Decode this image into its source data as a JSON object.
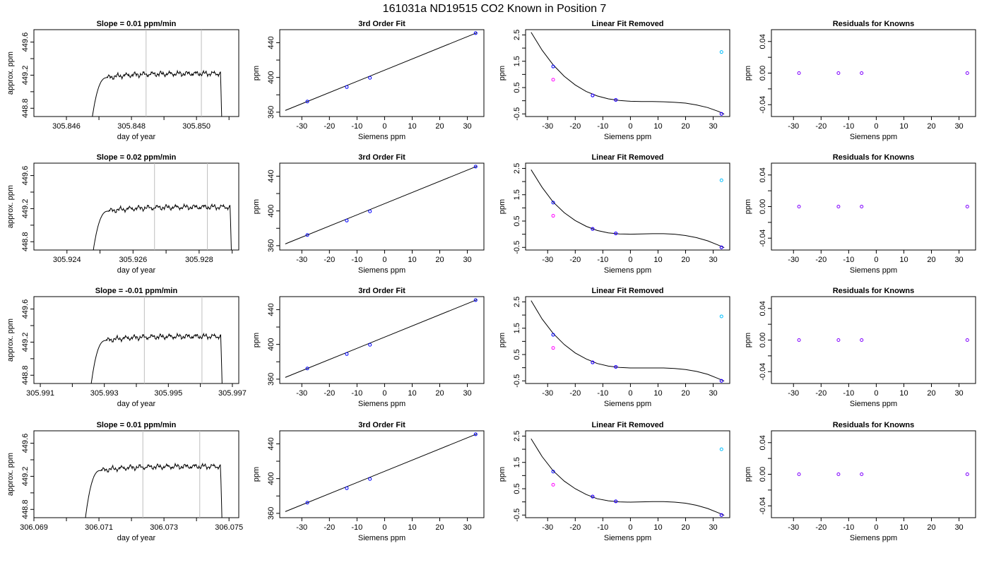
{
  "figure": {
    "suptitle": "161031a     ND19515   CO2 Known in Position  7"
  },
  "colors": {
    "line": "#000000",
    "vline": "#bebebe",
    "point_blue": "#0000ff",
    "point_magenta": "#ff00ff",
    "point_cyan": "#00bfff",
    "point_purple": "#8000ff"
  },
  "chart_data": [
    {
      "type": "line",
      "panel": "time_series",
      "row": 0,
      "title": "Slope =  0.01  ppm/min",
      "xlabel": "day of year",
      "ylabel": "approx. ppm",
      "xlim": [
        305.845,
        305.8513
      ],
      "ylim": [
        448.7,
        449.75
      ],
      "xticks": [
        305.846,
        305.847,
        305.848,
        305.849,
        305.85,
        305.851
      ],
      "xticklabels": [
        "305.846",
        "",
        "305.848",
        "",
        "305.850",
        ""
      ],
      "yticks": [
        448.8,
        449.0,
        449.2,
        449.4,
        449.6
      ],
      "yticklabels": [
        "448.8",
        "",
        "449.2",
        "",
        "449.6"
      ],
      "vlines": [
        305.84845,
        305.85015
      ],
      "trace": {
        "start": 305.8467,
        "end": 305.8508,
        "level": 449.2
      }
    },
    {
      "type": "line",
      "panel": "time_series",
      "row": 1,
      "title": "Slope =  0.02  ppm/min",
      "xlabel": "day of year",
      "ylabel": "approx. ppm",
      "xlim": [
        305.923,
        305.9292
      ],
      "ylim": [
        448.7,
        449.75
      ],
      "xticks": [
        305.924,
        305.925,
        305.926,
        305.927,
        305.928,
        305.929
      ],
      "xticklabels": [
        "305.924",
        "",
        "305.926",
        "",
        "305.928",
        ""
      ],
      "yticks": [
        448.8,
        449.0,
        449.2,
        449.4,
        449.6
      ],
      "yticklabels": [
        "448.8",
        "",
        "449.2",
        "",
        "449.6"
      ],
      "vlines": [
        305.92665,
        305.92825
      ],
      "trace": {
        "start": 305.9247,
        "end": 305.929,
        "level": 449.2
      }
    },
    {
      "type": "line",
      "panel": "time_series",
      "row": 2,
      "title": "Slope =  -0.01  ppm/min",
      "xlabel": "day of year",
      "ylabel": "approx. ppm",
      "xlim": [
        305.9908,
        305.9972
      ],
      "ylim": [
        448.7,
        449.75
      ],
      "xticks": [
        305.991,
        305.992,
        305.993,
        305.994,
        305.995,
        305.996,
        305.997
      ],
      "xticklabels": [
        "305.991",
        "",
        "305.993",
        "",
        "305.995",
        "",
        "305.997"
      ],
      "yticks": [
        448.8,
        449.0,
        449.2,
        449.4,
        449.6
      ],
      "yticklabels": [
        "448.8",
        "",
        "449.2",
        "",
        "449.6"
      ],
      "vlines": [
        305.99425,
        305.99605
      ],
      "trace": {
        "start": 305.9925,
        "end": 305.9967,
        "level": 449.25
      }
    },
    {
      "type": "line",
      "panel": "time_series",
      "row": 3,
      "title": "Slope =  0.01  ppm/min",
      "xlabel": "day of year",
      "ylabel": "approx. ppm",
      "xlim": [
        306.069,
        306.0753
      ],
      "ylim": [
        448.7,
        449.75
      ],
      "xticks": [
        306.069,
        306.07,
        306.071,
        306.072,
        306.073,
        306.074,
        306.075
      ],
      "xticklabels": [
        "306.069",
        "",
        "306.071",
        "",
        "306.073",
        "",
        "306.075"
      ],
      "yticks": [
        448.8,
        449.0,
        449.2,
        449.4,
        449.6
      ],
      "yticklabels": [
        "448.8",
        "",
        "449.2",
        "",
        "449.6"
      ],
      "vlines": [
        306.07235,
        306.0741
      ],
      "trace": {
        "start": 306.0705,
        "end": 306.0748,
        "level": 449.3
      }
    },
    {
      "type": "scatter",
      "panel": "third_order_fit",
      "row": 0,
      "title": "3rd Order Fit",
      "xlabel": "Siemens ppm",
      "ylabel": "ppm",
      "xlim": [
        -38,
        36
      ],
      "ylim": [
        355,
        455
      ],
      "xticks": [
        -30,
        -20,
        -10,
        0,
        10,
        20,
        30
      ],
      "xticklabels": [
        "-30",
        "-20",
        "-10",
        "0",
        "10",
        "20",
        "30"
      ],
      "yticks": [
        360,
        380,
        400,
        420,
        440
      ],
      "yticklabels": [
        "360",
        "",
        "400",
        "",
        "440"
      ],
      "points": {
        "x": [
          -28.0,
          -13.7,
          -5.3,
          33.0
        ],
        "y": [
          372.3,
          388.9,
          399.5,
          451.0
        ]
      },
      "fit_line": {
        "x": [
          -36.0,
          33.5
        ],
        "y": [
          362.0,
          451.5
        ]
      }
    },
    {
      "type": "scatter",
      "panel": "third_order_fit",
      "row": 1,
      "title": "3rd Order Fit",
      "xlabel": "Siemens ppm",
      "ylabel": "ppm",
      "xlim": [
        -38,
        36
      ],
      "ylim": [
        355,
        455
      ],
      "xticks": [
        -30,
        -20,
        -10,
        0,
        10,
        20,
        30
      ],
      "xticklabels": [
        "-30",
        "-20",
        "-10",
        "0",
        "10",
        "20",
        "30"
      ],
      "yticks": [
        360,
        380,
        400,
        420,
        440
      ],
      "yticklabels": [
        "360",
        "",
        "400",
        "",
        "440"
      ],
      "points": {
        "x": [
          -28.0,
          -13.7,
          -5.3,
          33.0
        ],
        "y": [
          372.3,
          388.9,
          399.5,
          451.0
        ]
      },
      "fit_line": {
        "x": [
          -36.0,
          33.5
        ],
        "y": [
          362.0,
          451.5
        ]
      }
    },
    {
      "type": "scatter",
      "panel": "third_order_fit",
      "row": 2,
      "title": "3rd Order Fit",
      "xlabel": "Siemens ppm",
      "ylabel": "ppm",
      "xlim": [
        -38,
        36
      ],
      "ylim": [
        355,
        455
      ],
      "xticks": [
        -30,
        -20,
        -10,
        0,
        10,
        20,
        30
      ],
      "xticklabels": [
        "-30",
        "-20",
        "-10",
        "0",
        "10",
        "20",
        "30"
      ],
      "yticks": [
        360,
        380,
        400,
        420,
        440
      ],
      "yticklabels": [
        "360",
        "",
        "400",
        "",
        "440"
      ],
      "points": {
        "x": [
          -28.0,
          -13.7,
          -5.3,
          33.0
        ],
        "y": [
          372.3,
          388.9,
          399.5,
          451.0
        ]
      },
      "fit_line": {
        "x": [
          -36.0,
          33.5
        ],
        "y": [
          362.0,
          451.5
        ]
      }
    },
    {
      "type": "scatter",
      "panel": "third_order_fit",
      "row": 3,
      "title": "3rd Order Fit",
      "xlabel": "Siemens ppm",
      "ylabel": "ppm",
      "xlim": [
        -38,
        36
      ],
      "ylim": [
        355,
        455
      ],
      "xticks": [
        -30,
        -20,
        -10,
        0,
        10,
        20,
        30
      ],
      "xticklabels": [
        "-30",
        "-20",
        "-10",
        "0",
        "10",
        "20",
        "30"
      ],
      "yticks": [
        360,
        380,
        400,
        420,
        440
      ],
      "yticklabels": [
        "360",
        "",
        "400",
        "",
        "440"
      ],
      "points": {
        "x": [
          -28.0,
          -13.7,
          -5.3,
          33.0
        ],
        "y": [
          372.3,
          388.9,
          399.5,
          451.0
        ]
      },
      "fit_line": {
        "x": [
          -36.0,
          33.5
        ],
        "y": [
          362.0,
          451.5
        ]
      }
    },
    {
      "type": "scatter",
      "panel": "linear_fit_removed",
      "row": 0,
      "title": "Linear Fit Removed",
      "xlabel": "Siemens ppm",
      "ylabel": "ppm",
      "xlim": [
        -38,
        36
      ],
      "ylim": [
        -0.6,
        2.7
      ],
      "xticks": [
        -30,
        -20,
        -10,
        0,
        10,
        20,
        30
      ],
      "xticklabels": [
        "-30",
        "-20",
        "-10",
        "0",
        "10",
        "20",
        "30"
      ],
      "yticks": [
        -0.5,
        0.0,
        0.5,
        1.0,
        1.5,
        2.0,
        2.5
      ],
      "yticklabels": [
        "-0.5",
        "",
        "0.5",
        "",
        "1.5",
        "",
        "2.5"
      ],
      "points_blue": {
        "x": [
          -28.0,
          -13.7,
          -5.3,
          33.0
        ],
        "y": [
          1.3,
          0.2,
          0.03,
          -0.5
        ]
      },
      "points_magenta": {
        "x": [
          -28.0,
          -13.7,
          -5.3,
          33.0
        ],
        "y": [
          0.8,
          0.2,
          0.03,
          -0.5
        ]
      },
      "points_cyan": {
        "x": [
          33.0
        ],
        "y": [
          1.85
        ]
      },
      "curve": {
        "x": [
          -36,
          -32,
          -28,
          -24,
          -20,
          -16,
          -12,
          -8,
          -4,
          0,
          4,
          8,
          12,
          16,
          20,
          24,
          28,
          32,
          34
        ],
        "y": [
          2.6,
          1.92,
          1.36,
          0.93,
          0.6,
          0.35,
          0.18,
          0.07,
          0.01,
          -0.02,
          -0.03,
          -0.03,
          -0.04,
          -0.06,
          -0.09,
          -0.16,
          -0.26,
          -0.41,
          -0.51
        ]
      }
    },
    {
      "type": "scatter",
      "panel": "linear_fit_removed",
      "row": 1,
      "title": "Linear Fit Removed",
      "xlabel": "Siemens ppm",
      "ylabel": "ppm",
      "xlim": [
        -38,
        36
      ],
      "ylim": [
        -0.6,
        2.7
      ],
      "xticks": [
        -30,
        -20,
        -10,
        0,
        10,
        20,
        30
      ],
      "xticklabels": [
        "-30",
        "-20",
        "-10",
        "0",
        "10",
        "20",
        "30"
      ],
      "yticks": [
        -0.5,
        0.0,
        0.5,
        1.0,
        1.5,
        2.0,
        2.5
      ],
      "yticklabels": [
        "-0.5",
        "",
        "0.5",
        "",
        "1.5",
        "",
        "2.5"
      ],
      "points_blue": {
        "x": [
          -28.0,
          -13.7,
          -5.3,
          33.0
        ],
        "y": [
          1.2,
          0.2,
          0.03,
          -0.5
        ]
      },
      "points_magenta": {
        "x": [
          -28.0,
          -13.7,
          -5.3,
          33.0
        ],
        "y": [
          0.7,
          0.2,
          0.03,
          -0.5
        ]
      },
      "points_cyan": {
        "x": [
          33.0
        ],
        "y": [
          2.05
        ]
      },
      "curve": {
        "x": [
          -36,
          -32,
          -28,
          -24,
          -20,
          -16,
          -12,
          -8,
          -4,
          0,
          4,
          8,
          12,
          16,
          20,
          24,
          28,
          32,
          34
        ],
        "y": [
          2.45,
          1.78,
          1.22,
          0.82,
          0.52,
          0.3,
          0.14,
          0.05,
          0.01,
          0.0,
          0.01,
          0.02,
          0.02,
          0.0,
          -0.05,
          -0.13,
          -0.25,
          -0.42,
          -0.51
        ]
      }
    },
    {
      "type": "scatter",
      "panel": "linear_fit_removed",
      "row": 2,
      "title": "Linear Fit Removed",
      "xlabel": "Siemens ppm",
      "ylabel": "ppm",
      "xlim": [
        -38,
        36
      ],
      "ylim": [
        -0.6,
        2.7
      ],
      "xticks": [
        -30,
        -20,
        -10,
        0,
        10,
        20,
        30
      ],
      "xticklabels": [
        "-30",
        "-20",
        "-10",
        "0",
        "10",
        "20",
        "30"
      ],
      "yticks": [
        -0.5,
        0.0,
        0.5,
        1.0,
        1.5,
        2.0,
        2.5
      ],
      "yticklabels": [
        "-0.5",
        "",
        "0.5",
        "",
        "1.5",
        "",
        "2.5"
      ],
      "points_blue": {
        "x": [
          -28.0,
          -13.7,
          -5.3,
          33.0
        ],
        "y": [
          1.25,
          0.2,
          0.03,
          -0.5
        ]
      },
      "points_magenta": {
        "x": [
          -28.0,
          -13.7,
          -5.3,
          33.0
        ],
        "y": [
          0.75,
          0.2,
          0.03,
          -0.5
        ]
      },
      "points_cyan": {
        "x": [
          33.0
        ],
        "y": [
          1.95
        ]
      },
      "curve": {
        "x": [
          -36,
          -32,
          -28,
          -24,
          -20,
          -16,
          -12,
          -8,
          -4,
          0,
          4,
          8,
          12,
          16,
          20,
          24,
          28,
          32,
          34
        ],
        "y": [
          2.55,
          1.85,
          1.3,
          0.88,
          0.56,
          0.33,
          0.16,
          0.06,
          0.01,
          -0.01,
          -0.01,
          -0.01,
          -0.01,
          -0.03,
          -0.07,
          -0.14,
          -0.25,
          -0.42,
          -0.51
        ]
      }
    },
    {
      "type": "scatter",
      "panel": "linear_fit_removed",
      "row": 3,
      "title": "Linear Fit Removed",
      "xlabel": "Siemens ppm",
      "ylabel": "ppm",
      "xlim": [
        -38,
        36
      ],
      "ylim": [
        -0.6,
        2.7
      ],
      "xticks": [
        -30,
        -20,
        -10,
        0,
        10,
        20,
        30
      ],
      "xticklabels": [
        "-30",
        "-20",
        "-10",
        "0",
        "10",
        "20",
        "30"
      ],
      "yticks": [
        -0.5,
        0.0,
        0.5,
        1.0,
        1.5,
        2.0,
        2.5
      ],
      "yticklabels": [
        "-0.5",
        "",
        "0.5",
        "",
        "1.5",
        "",
        "2.5"
      ],
      "points_blue": {
        "x": [
          -28.0,
          -13.7,
          -5.3,
          33.0
        ],
        "y": [
          1.15,
          0.2,
          0.02,
          -0.5
        ]
      },
      "points_magenta": {
        "x": [
          -28.0,
          -13.7,
          -5.3,
          33.0
        ],
        "y": [
          0.65,
          0.2,
          0.02,
          -0.5
        ]
      },
      "points_cyan": {
        "x": [
          33.0
        ],
        "y": [
          2.0
        ]
      },
      "curve": {
        "x": [
          -36,
          -32,
          -28,
          -24,
          -20,
          -16,
          -12,
          -8,
          -4,
          0,
          4,
          8,
          12,
          16,
          20,
          24,
          28,
          32,
          34
        ],
        "y": [
          2.4,
          1.72,
          1.18,
          0.79,
          0.5,
          0.28,
          0.12,
          0.04,
          0.0,
          -0.01,
          0.0,
          0.01,
          0.01,
          -0.01,
          -0.05,
          -0.13,
          -0.25,
          -0.42,
          -0.51
        ]
      }
    },
    {
      "type": "scatter",
      "panel": "residuals",
      "row": 0,
      "title": "Residuals for Knowns",
      "xlabel": "Siemens ppm",
      "ylabel": "ppm",
      "xlim": [
        -38,
        36
      ],
      "ylim": [
        -0.055,
        0.055
      ],
      "xticks": [
        -30,
        -20,
        -10,
        0,
        10,
        20,
        30
      ],
      "xticklabels": [
        "-30",
        "-20",
        "-10",
        "0",
        "10",
        "20",
        "30"
      ],
      "yticks": [
        -0.04,
        -0.02,
        0.0,
        0.02,
        0.04
      ],
      "yticklabels": [
        "-0.04",
        "",
        "0.00",
        "",
        "0.04"
      ],
      "points": {
        "x": [
          -28.0,
          -13.7,
          -5.3,
          33.0
        ],
        "y": [
          0.0,
          0.0,
          0.0,
          0.0
        ]
      }
    },
    {
      "type": "scatter",
      "panel": "residuals",
      "row": 1,
      "title": "Residuals for Knowns",
      "xlabel": "Siemens ppm",
      "ylabel": "ppm",
      "xlim": [
        -38,
        36
      ],
      "ylim": [
        -0.055,
        0.055
      ],
      "xticks": [
        -30,
        -20,
        -10,
        0,
        10,
        20,
        30
      ],
      "xticklabels": [
        "-30",
        "-20",
        "-10",
        "0",
        "10",
        "20",
        "30"
      ],
      "yticks": [
        -0.04,
        -0.02,
        0.0,
        0.02,
        0.04
      ],
      "yticklabels": [
        "-0.04",
        "",
        "0.00",
        "",
        "0.04"
      ],
      "points": {
        "x": [
          -28.0,
          -13.7,
          -5.3,
          33.0
        ],
        "y": [
          0.0,
          0.0,
          0.0,
          0.0
        ]
      }
    },
    {
      "type": "scatter",
      "panel": "residuals",
      "row": 2,
      "title": "Residuals for Knowns",
      "xlabel": "Siemens ppm",
      "ylabel": "ppm",
      "xlim": [
        -38,
        36
      ],
      "ylim": [
        -0.055,
        0.055
      ],
      "xticks": [
        -30,
        -20,
        -10,
        0,
        10,
        20,
        30
      ],
      "xticklabels": [
        "-30",
        "-20",
        "-10",
        "0",
        "10",
        "20",
        "30"
      ],
      "yticks": [
        -0.04,
        -0.02,
        0.0,
        0.02,
        0.04
      ],
      "yticklabels": [
        "-0.04",
        "",
        "0.00",
        "",
        "0.04"
      ],
      "points": {
        "x": [
          -28.0,
          -13.7,
          -5.3,
          33.0
        ],
        "y": [
          0.0,
          0.0,
          0.0,
          0.0
        ]
      }
    },
    {
      "type": "scatter",
      "panel": "residuals",
      "row": 3,
      "title": "Residuals for Knowns",
      "xlabel": "Siemens ppm",
      "ylabel": "ppm",
      "xlim": [
        -38,
        36
      ],
      "ylim": [
        -0.055,
        0.055
      ],
      "xticks": [
        -30,
        -20,
        -10,
        0,
        10,
        20,
        30
      ],
      "xticklabels": [
        "-30",
        "-20",
        "-10",
        "0",
        "10",
        "20",
        "30"
      ],
      "yticks": [
        -0.04,
        -0.02,
        0.0,
        0.02,
        0.04
      ],
      "yticklabels": [
        "-0.04",
        "",
        "0.00",
        "",
        "0.04"
      ],
      "points": {
        "x": [
          -28.0,
          -13.7,
          -5.3,
          33.0
        ],
        "y": [
          0.0,
          0.0,
          0.0,
          0.0
        ]
      }
    }
  ]
}
